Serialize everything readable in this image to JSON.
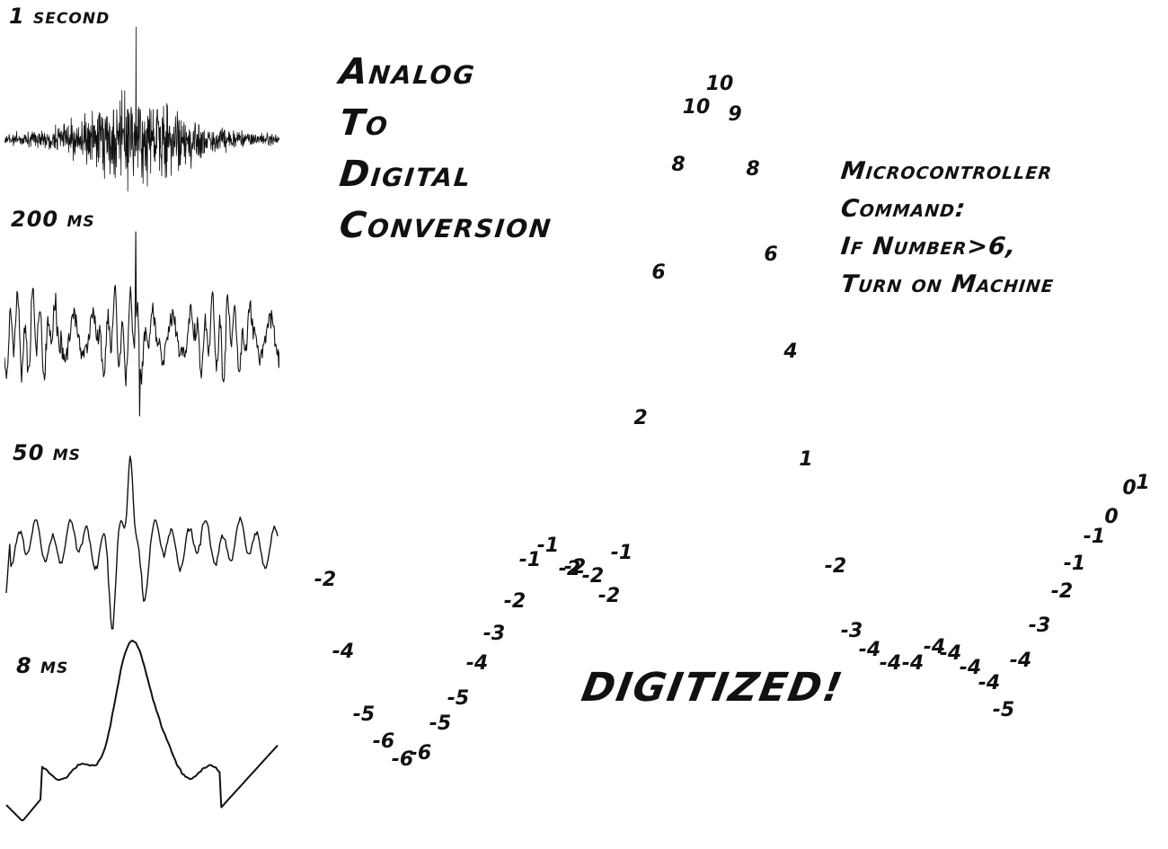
{
  "waveforms": [
    {
      "label": "1 second",
      "kind": "noise"
    },
    {
      "label": "200 ms",
      "kind": "medium"
    },
    {
      "label": "50 ms",
      "kind": "spike"
    },
    {
      "label": "8 ms",
      "kind": "bump"
    }
  ],
  "title": [
    "Analog",
    "To",
    "Digital",
    "Conversion"
  ],
  "command": [
    "Microcontroller",
    "Command:",
    "If Number>6,",
    "Turn on Machine"
  ],
  "exclamation": "DIGITIZED!",
  "digitized_values": [
    -2,
    -4,
    -5,
    -6,
    -6,
    -6,
    -5,
    -5,
    -4,
    -3,
    -2,
    -1,
    -1,
    -2,
    -2,
    -2,
    -2,
    -1,
    2,
    6,
    8,
    10,
    10,
    9,
    8,
    6,
    4,
    1,
    -2,
    -3,
    -4,
    -4,
    -4,
    -4,
    -4,
    -4,
    -4,
    -5,
    -4,
    -3,
    -2,
    -1,
    -1,
    0,
    0,
    1
  ]
}
